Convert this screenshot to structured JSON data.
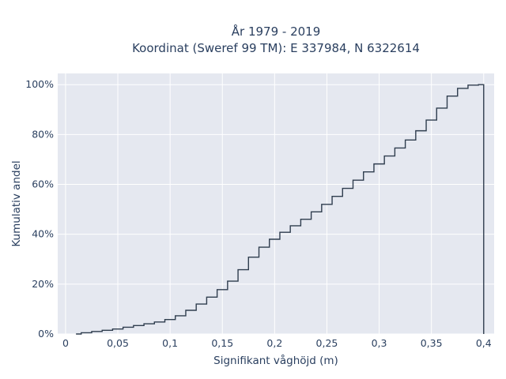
{
  "chart_data": {
    "type": "line",
    "line_shape": "step",
    "title_line1": "År 1979 - 2019",
    "title_line2": "Koordinat (Sweref 99 TM): E 337984, N 6322614",
    "xlabel": "Signifikant våghöjd (m)",
    "ylabel": "Kumulativ andel",
    "xlim": [
      -0.0075,
      0.41
    ],
    "ylim": [
      0,
      1.045
    ],
    "xticks": [
      0,
      0.05,
      0.1,
      0.15,
      0.2,
      0.25,
      0.3,
      0.35,
      0.4
    ],
    "xtick_labels": [
      "0",
      "0,05",
      "0,1",
      "0,15",
      "0,2",
      "0,25",
      "0,3",
      "0,35",
      "0,4"
    ],
    "yticks": [
      0,
      0.2,
      0.4,
      0.6,
      0.8,
      1.0
    ],
    "ytick_labels": [
      "0%",
      "20%",
      "40%",
      "60%",
      "80%",
      "100%"
    ],
    "grid": true,
    "colors": {
      "plot_bg": "#e5e8f0",
      "grid": "#ffffff",
      "line": "#2f3d4e",
      "text": "#2a3f5f"
    },
    "series": [
      {
        "x": [
          0.01,
          0.02,
          0.03,
          0.04,
          0.05,
          0.06,
          0.07,
          0.08,
          0.09,
          0.1,
          0.11,
          0.12,
          0.13,
          0.14,
          0.15,
          0.16,
          0.17,
          0.18,
          0.19,
          0.2,
          0.21,
          0.22,
          0.23,
          0.24,
          0.25,
          0.26,
          0.27,
          0.28,
          0.29,
          0.3,
          0.31,
          0.32,
          0.33,
          0.34,
          0.35,
          0.36,
          0.37,
          0.38,
          0.39,
          0.4
        ],
        "y": [
          0.0,
          0.005,
          0.01,
          0.015,
          0.02,
          0.027,
          0.034,
          0.041,
          0.048,
          0.058,
          0.073,
          0.095,
          0.12,
          0.148,
          0.178,
          0.212,
          0.258,
          0.308,
          0.348,
          0.38,
          0.408,
          0.434,
          0.46,
          0.49,
          0.52,
          0.552,
          0.584,
          0.617,
          0.65,
          0.682,
          0.714,
          0.746,
          0.778,
          0.815,
          0.858,
          0.906,
          0.954,
          0.985,
          0.998,
          1.0
        ]
      }
    ]
  }
}
